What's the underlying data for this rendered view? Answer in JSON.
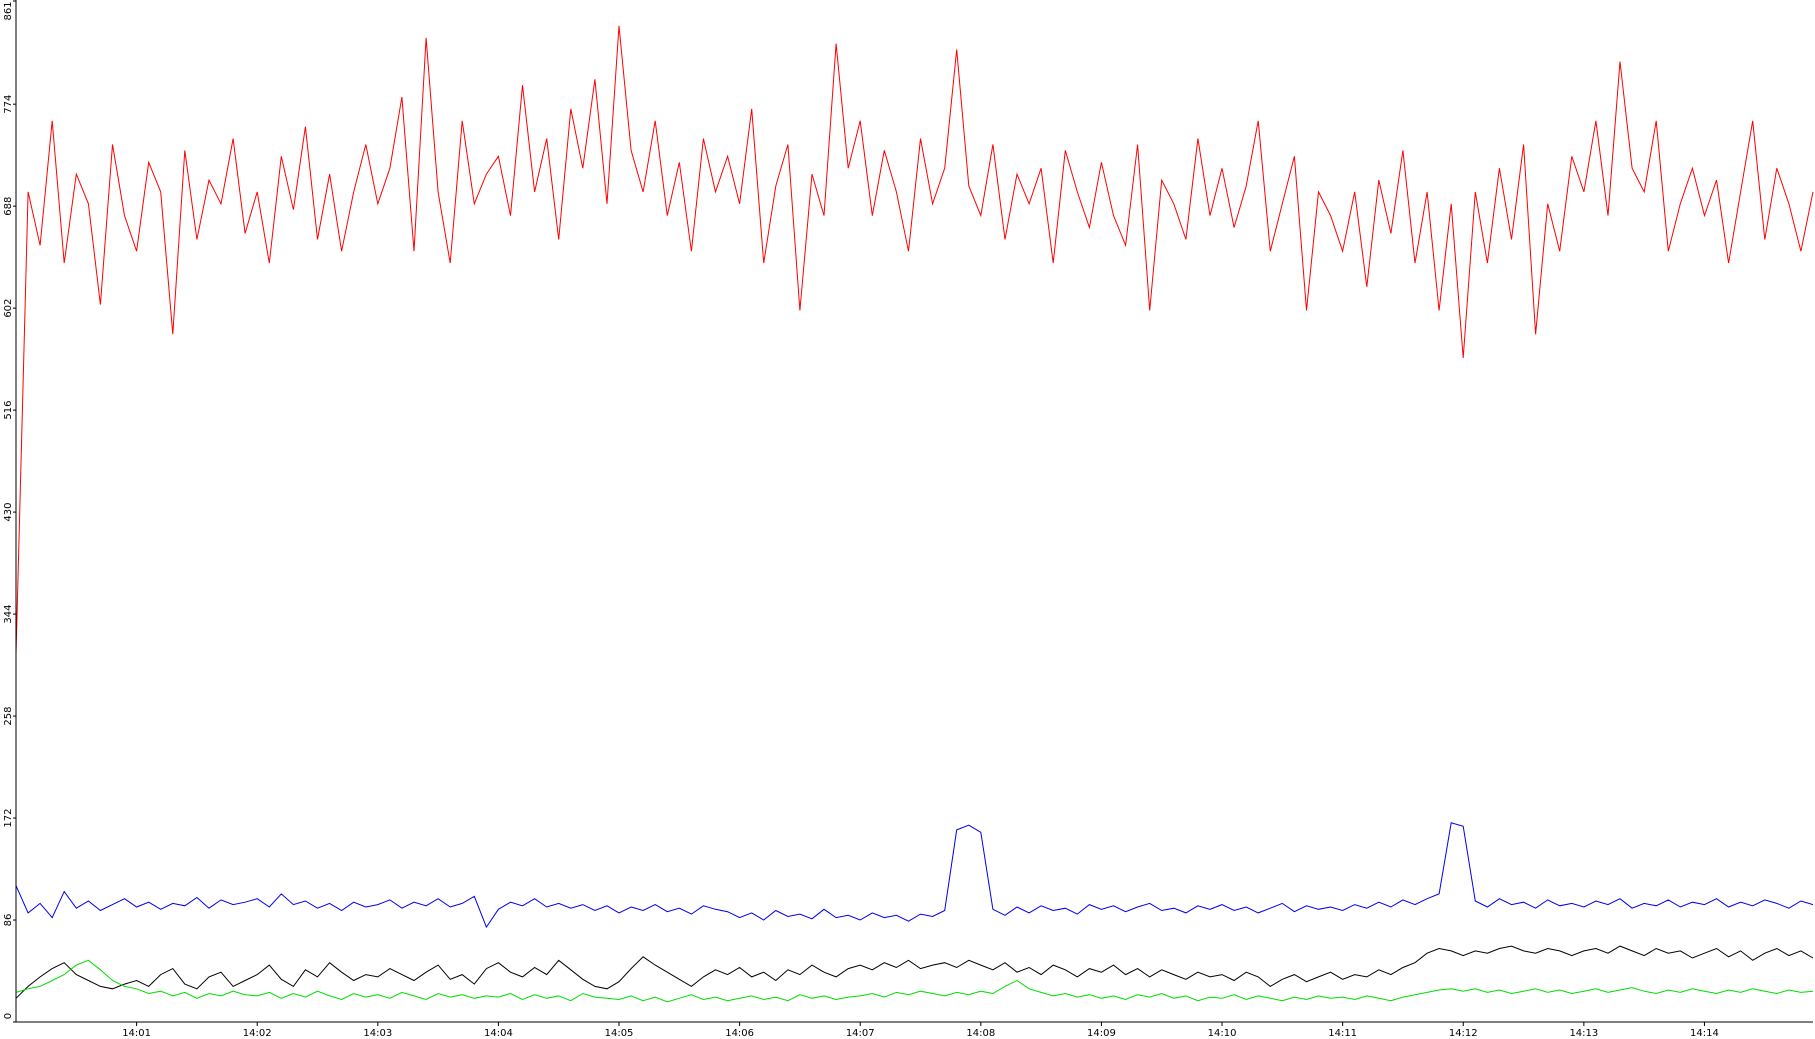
{
  "chart_data": {
    "type": "line",
    "categories": [
      null,
      null,
      null,
      null,
      null,
      null,
      null,
      null,
      null,
      null,
      "14:01",
      null,
      null,
      null,
      null,
      null,
      null,
      null,
      null,
      null,
      "14:02",
      null,
      null,
      null,
      null,
      null,
      null,
      null,
      null,
      null,
      "14:03",
      null,
      null,
      null,
      null,
      null,
      null,
      null,
      null,
      null,
      "14:04",
      null,
      null,
      null,
      null,
      null,
      null,
      null,
      null,
      null,
      "14:05",
      null,
      null,
      null,
      null,
      null,
      null,
      null,
      null,
      null,
      "14:06",
      null,
      null,
      null,
      null,
      null,
      null,
      null,
      null,
      null,
      "14:07",
      null,
      null,
      null,
      null,
      null,
      null,
      null,
      null,
      null,
      "14:08",
      null,
      null,
      null,
      null,
      null,
      null,
      null,
      null,
      null,
      "14:09",
      null,
      null,
      null,
      null,
      null,
      null,
      null,
      null,
      null,
      "14:10",
      null,
      null,
      null,
      null,
      null,
      null,
      null,
      null,
      null,
      "14:11",
      null,
      null,
      null,
      null,
      null,
      null,
      null,
      null,
      null,
      "14:12",
      null,
      null,
      null,
      null,
      null,
      null,
      null,
      null,
      null,
      "14:13",
      null,
      null,
      null,
      null,
      null,
      null,
      null,
      null,
      null,
      "14:14",
      null,
      null,
      null,
      null,
      null,
      null,
      null,
      null,
      null
    ],
    "series": [
      {
        "color": "#ff0000",
        "values": [
          310,
          700,
          655,
          760,
          640,
          715,
          690,
          605,
          740,
          680,
          650,
          725,
          700,
          580,
          735,
          660,
          710,
          690,
          745,
          665,
          700,
          640,
          730,
          685,
          755,
          660,
          715,
          650,
          700,
          740,
          690,
          720,
          780,
          650,
          830,
          700,
          640,
          760,
          690,
          715,
          730,
          680,
          790,
          700,
          745,
          660,
          770,
          720,
          795,
          690,
          840,
          735,
          700,
          760,
          680,
          725,
          650,
          745,
          700,
          730,
          690,
          770,
          640,
          705,
          740,
          600,
          715,
          680,
          825,
          720,
          760,
          680,
          735,
          700,
          650,
          745,
          690,
          720,
          820,
          705,
          680,
          740,
          660,
          715,
          690,
          720,
          640,
          735,
          700,
          670,
          725,
          680,
          655,
          740,
          600,
          710,
          690,
          660,
          745,
          680,
          720,
          670,
          705,
          760,
          650,
          690,
          730,
          600,
          700,
          680,
          650,
          700,
          620,
          710,
          665,
          735,
          640,
          700,
          600,
          690,
          560,
          700,
          640,
          720,
          660,
          740,
          580,
          690,
          650,
          730,
          700,
          760,
          680,
          810,
          720,
          700,
          760,
          650,
          690,
          720,
          680,
          710,
          640,
          700,
          760,
          660,
          720,
          690,
          650,
          700
        ]
      },
      {
        "color": "#0000ee",
        "values": [
          115,
          92,
          100,
          88,
          110,
          96,
          102,
          94,
          99,
          104,
          97,
          101,
          95,
          100,
          98,
          105,
          96,
          103,
          99,
          101,
          104,
          97,
          108,
          99,
          102,
          96,
          100,
          94,
          101,
          97,
          99,
          103,
          96,
          101,
          98,
          104,
          97,
          100,
          106,
          80,
          95,
          101,
          98,
          104,
          97,
          100,
          96,
          99,
          94,
          98,
          92,
          97,
          94,
          99,
          93,
          96,
          91,
          98,
          95,
          93,
          88,
          92,
          86,
          94,
          89,
          91,
          87,
          95,
          88,
          90,
          86,
          92,
          88,
          90,
          85,
          91,
          89,
          94,
          162,
          166,
          160,
          95,
          90,
          97,
          92,
          98,
          94,
          96,
          91,
          99,
          95,
          98,
          93,
          97,
          100,
          94,
          96,
          92,
          98,
          95,
          99,
          94,
          97,
          92,
          96,
          100,
          93,
          98,
          95,
          97,
          94,
          99,
          96,
          101,
          97,
          103,
          99,
          104,
          108,
          168,
          165,
          102,
          97,
          104,
          99,
          101,
          96,
          103,
          98,
          100,
          97,
          102,
          99,
          104,
          96,
          100,
          98,
          103,
          97,
          101,
          99,
          104,
          97,
          101,
          98,
          103,
          100,
          96,
          102,
          99
        ]
      },
      {
        "color": "#000000",
        "values": [
          20,
          30,
          38,
          45,
          50,
          40,
          35,
          30,
          28,
          32,
          35,
          30,
          40,
          45,
          32,
          28,
          38,
          42,
          30,
          35,
          40,
          48,
          36,
          30,
          44,
          38,
          50,
          42,
          35,
          40,
          38,
          45,
          40,
          35,
          42,
          48,
          36,
          40,
          32,
          45,
          50,
          42,
          38,
          46,
          40,
          52,
          44,
          36,
          30,
          28,
          34,
          45,
          55,
          48,
          42,
          36,
          30,
          38,
          44,
          40,
          46,
          38,
          42,
          35,
          44,
          40,
          48,
          42,
          38,
          45,
          48,
          44,
          50,
          46,
          52,
          45,
          48,
          50,
          46,
          52,
          48,
          44,
          50,
          42,
          46,
          40,
          48,
          44,
          38,
          45,
          42,
          48,
          40,
          45,
          38,
          44,
          40,
          36,
          42,
          38,
          40,
          35,
          42,
          38,
          30,
          36,
          40,
          34,
          38,
          42,
          36,
          40,
          38,
          44,
          40,
          46,
          50,
          58,
          62,
          60,
          56,
          60,
          58,
          62,
          64,
          60,
          58,
          62,
          60,
          56,
          60,
          62,
          58,
          64,
          60,
          56,
          62,
          58,
          60,
          54,
          58,
          62,
          55,
          60,
          52,
          58,
          62,
          56,
          60,
          54
        ]
      },
      {
        "color": "#00dd00",
        "values": [
          25,
          28,
          30,
          35,
          40,
          48,
          52,
          44,
          35,
          30,
          28,
          24,
          26,
          22,
          25,
          20,
          24,
          22,
          26,
          23,
          22,
          25,
          20,
          24,
          21,
          26,
          22,
          19,
          24,
          21,
          23,
          20,
          25,
          22,
          19,
          24,
          21,
          23,
          20,
          22,
          21,
          24,
          19,
          23,
          20,
          22,
          18,
          24,
          21,
          20,
          19,
          22,
          18,
          21,
          17,
          20,
          23,
          19,
          21,
          18,
          20,
          22,
          19,
          21,
          18,
          23,
          20,
          22,
          19,
          21,
          22,
          24,
          21,
          25,
          23,
          26,
          24,
          22,
          25,
          23,
          26,
          24,
          30,
          35,
          28,
          25,
          22,
          24,
          21,
          23,
          20,
          22,
          19,
          23,
          21,
          24,
          20,
          22,
          18,
          21,
          20,
          23,
          19,
          22,
          20,
          18,
          21,
          19,
          22,
          20,
          21,
          19,
          22,
          20,
          18,
          21,
          23,
          25,
          27,
          28,
          26,
          28,
          25,
          27,
          24,
          26,
          28,
          25,
          27,
          24,
          26,
          28,
          25,
          27,
          29,
          26,
          24,
          27,
          25,
          28,
          26,
          24,
          27,
          25,
          28,
          26,
          24,
          27,
          25,
          26
        ]
      }
    ],
    "ylim": [
      0,
      861
    ],
    "yticks": [
      0,
      86,
      172,
      258,
      344,
      430,
      516,
      602,
      688,
      774,
      861
    ]
  }
}
